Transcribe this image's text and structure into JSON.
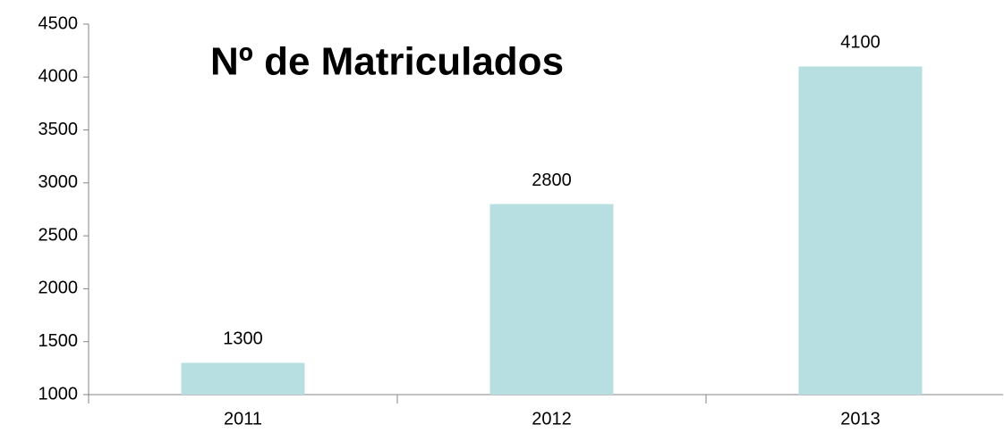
{
  "chart_data": {
    "type": "bar",
    "title": "Nº de Matriculados",
    "categories": [
      "2011",
      "2012",
      "2013"
    ],
    "values": [
      1300,
      2800,
      4100
    ],
    "color": "#b7dfe2",
    "ylim": [
      1000,
      4500
    ],
    "yticks": [
      1000,
      1500,
      2000,
      2500,
      3000,
      3500,
      4000,
      4500
    ]
  }
}
